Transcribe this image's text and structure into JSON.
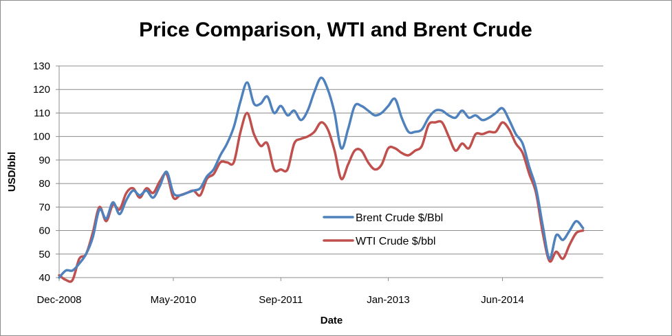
{
  "chart_data": {
    "type": "line",
    "title": "Price Comparison, WTI and Brent Crude",
    "xlabel": "Date",
    "ylabel": "USD/bbl",
    "ylim": [
      40,
      130
    ],
    "yticks": [
      40,
      50,
      60,
      70,
      80,
      90,
      100,
      110,
      120,
      130
    ],
    "xlim": [
      "2008-12",
      "2015-09"
    ],
    "xticks": [
      "Dec-2008",
      "May-2010",
      "Sep-2011",
      "Jan-2013",
      "Jun-2014"
    ],
    "grid": "horizontal",
    "legend": "center-right",
    "series": [
      {
        "name": "Brent Crude $/Bbl",
        "color": "#4f81bd",
        "points": [
          [
            "2008-12",
            40
          ],
          [
            "2009-01",
            43
          ],
          [
            "2009-02",
            43
          ],
          [
            "2009-03",
            46
          ],
          [
            "2009-04",
            50
          ],
          [
            "2009-05",
            57
          ],
          [
            "2009-06",
            69
          ],
          [
            "2009-07",
            65
          ],
          [
            "2009-08",
            72
          ],
          [
            "2009-09",
            67
          ],
          [
            "2009-10",
            73
          ],
          [
            "2009-11",
            77
          ],
          [
            "2009-12",
            75
          ],
          [
            "2010-01",
            77
          ],
          [
            "2010-02",
            74
          ],
          [
            "2010-03",
            79
          ],
          [
            "2010-04",
            85
          ],
          [
            "2010-05",
            76
          ],
          [
            "2010-06",
            75
          ],
          [
            "2010-07",
            76
          ],
          [
            "2010-08",
            77
          ],
          [
            "2010-09",
            78
          ],
          [
            "2010-10",
            83
          ],
          [
            "2010-11",
            86
          ],
          [
            "2010-12",
            92
          ],
          [
            "2011-01",
            97
          ],
          [
            "2011-02",
            104
          ],
          [
            "2011-03",
            115
          ],
          [
            "2011-04",
            123
          ],
          [
            "2011-05",
            114
          ],
          [
            "2011-06",
            114
          ],
          [
            "2011-07",
            117
          ],
          [
            "2011-08",
            110
          ],
          [
            "2011-09",
            113
          ],
          [
            "2011-10",
            109
          ],
          [
            "2011-11",
            111
          ],
          [
            "2011-12",
            107
          ],
          [
            "2012-01",
            111
          ],
          [
            "2012-02",
            119
          ],
          [
            "2012-03",
            125
          ],
          [
            "2012-04",
            120
          ],
          [
            "2012-05",
            110
          ],
          [
            "2012-06",
            95
          ],
          [
            "2012-07",
            103
          ],
          [
            "2012-08",
            113
          ],
          [
            "2012-09",
            113
          ],
          [
            "2012-10",
            111
          ],
          [
            "2012-11",
            109
          ],
          [
            "2012-12",
            110
          ],
          [
            "2013-01",
            113
          ],
          [
            "2013-02",
            116
          ],
          [
            "2013-03",
            108
          ],
          [
            "2013-04",
            102
          ],
          [
            "2013-05",
            102
          ],
          [
            "2013-06",
            103
          ],
          [
            "2013-07",
            108
          ],
          [
            "2013-08",
            111
          ],
          [
            "2013-09",
            111
          ],
          [
            "2013-10",
            109
          ],
          [
            "2013-11",
            108
          ],
          [
            "2013-12",
            111
          ],
          [
            "2014-01",
            108
          ],
          [
            "2014-02",
            109
          ],
          [
            "2014-03",
            107
          ],
          [
            "2014-04",
            108
          ],
          [
            "2014-05",
            110
          ],
          [
            "2014-06",
            112
          ],
          [
            "2014-07",
            107
          ],
          [
            "2014-08",
            101
          ],
          [
            "2014-09",
            97
          ],
          [
            "2014-10",
            87
          ],
          [
            "2014-11",
            78
          ],
          [
            "2014-12",
            62
          ],
          [
            "2015-01",
            48
          ],
          [
            "2015-02",
            58
          ],
          [
            "2015-03",
            56
          ],
          [
            "2015-04",
            60
          ],
          [
            "2015-05",
            64
          ],
          [
            "2015-06",
            61
          ]
        ]
      },
      {
        "name": "WTI Crude $/bbl",
        "color": "#c0504d",
        "points": [
          [
            "2008-12",
            41
          ],
          [
            "2009-01",
            39
          ],
          [
            "2009-02",
            39
          ],
          [
            "2009-03",
            48
          ],
          [
            "2009-04",
            50
          ],
          [
            "2009-05",
            59
          ],
          [
            "2009-06",
            70
          ],
          [
            "2009-07",
            64
          ],
          [
            "2009-08",
            71
          ],
          [
            "2009-09",
            69
          ],
          [
            "2009-10",
            76
          ],
          [
            "2009-11",
            78
          ],
          [
            "2009-12",
            74
          ],
          [
            "2010-01",
            78
          ],
          [
            "2010-02",
            76
          ],
          [
            "2010-03",
            81
          ],
          [
            "2010-04",
            84
          ],
          [
            "2010-05",
            74
          ],
          [
            "2010-06",
            75
          ],
          [
            "2010-07",
            76
          ],
          [
            "2010-08",
            77
          ],
          [
            "2010-09",
            75
          ],
          [
            "2010-10",
            82
          ],
          [
            "2010-11",
            84
          ],
          [
            "2010-12",
            89
          ],
          [
            "2011-01",
            89
          ],
          [
            "2011-02",
            89
          ],
          [
            "2011-03",
            102
          ],
          [
            "2011-04",
            110
          ],
          [
            "2011-05",
            101
          ],
          [
            "2011-06",
            96
          ],
          [
            "2011-07",
            97
          ],
          [
            "2011-08",
            86
          ],
          [
            "2011-09",
            86
          ],
          [
            "2011-10",
            86
          ],
          [
            "2011-11",
            97
          ],
          [
            "2011-12",
            99
          ],
          [
            "2012-01",
            100
          ],
          [
            "2012-02",
            102
          ],
          [
            "2012-03",
            106
          ],
          [
            "2012-04",
            103
          ],
          [
            "2012-05",
            94
          ],
          [
            "2012-06",
            82
          ],
          [
            "2012-07",
            88
          ],
          [
            "2012-08",
            94
          ],
          [
            "2012-09",
            94
          ],
          [
            "2012-10",
            89
          ],
          [
            "2012-11",
            86
          ],
          [
            "2012-12",
            88
          ],
          [
            "2013-01",
            95
          ],
          [
            "2013-02",
            95
          ],
          [
            "2013-03",
            93
          ],
          [
            "2013-04",
            92
          ],
          [
            "2013-05",
            94
          ],
          [
            "2013-06",
            96
          ],
          [
            "2013-07",
            105
          ],
          [
            "2013-08",
            106
          ],
          [
            "2013-09",
            106
          ],
          [
            "2013-10",
            100
          ],
          [
            "2013-11",
            94
          ],
          [
            "2013-12",
            97
          ],
          [
            "2014-01",
            95
          ],
          [
            "2014-02",
            101
          ],
          [
            "2014-03",
            101
          ],
          [
            "2014-04",
            102
          ],
          [
            "2014-05",
            102
          ],
          [
            "2014-06",
            106
          ],
          [
            "2014-07",
            103
          ],
          [
            "2014-08",
            97
          ],
          [
            "2014-09",
            93
          ],
          [
            "2014-10",
            84
          ],
          [
            "2014-11",
            76
          ],
          [
            "2014-12",
            59
          ],
          [
            "2015-01",
            47
          ],
          [
            "2015-02",
            51
          ],
          [
            "2015-03",
            48
          ],
          [
            "2015-04",
            54
          ],
          [
            "2015-05",
            59
          ],
          [
            "2015-06",
            60
          ]
        ]
      }
    ]
  }
}
